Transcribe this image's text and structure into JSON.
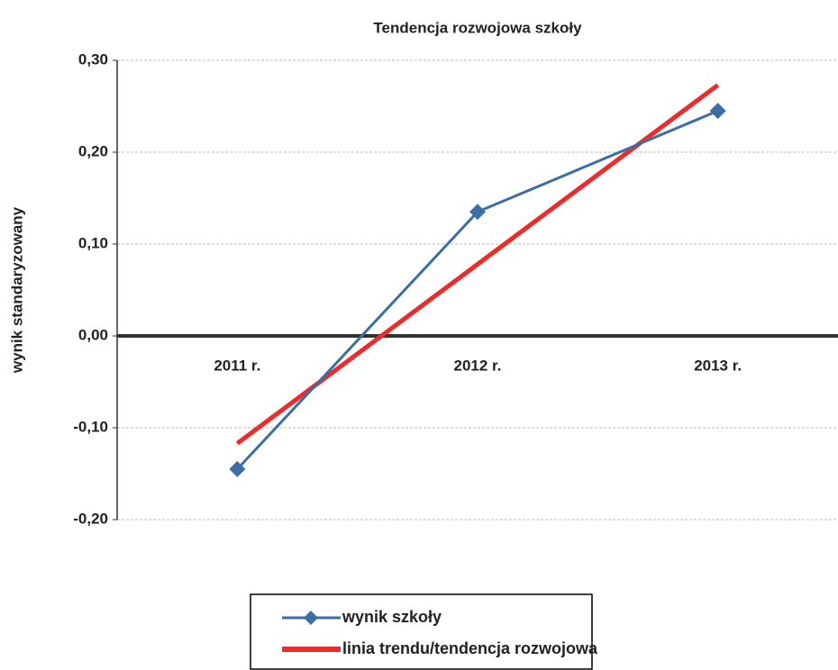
{
  "chart_data": {
    "type": "line",
    "title": "Tendencja rozwojowa szkoły",
    "y_label": "wynik standaryzowany",
    "categories": [
      "2011 r.",
      "2012 r.",
      "2013 r."
    ],
    "series": [
      {
        "name": "wynik szkoły",
        "color": "#3c6ea5",
        "marker": "diamond",
        "values": [
          -0.145,
          0.135,
          0.245
        ]
      },
      {
        "name": "linia trendu/tendencja rozwojowa",
        "color": "#ee2b2b",
        "values": [
          -0.117,
          0.078,
          0.273
        ]
      }
    ],
    "ylim": [
      -0.2,
      0.3
    ],
    "yticks": [
      {
        "value": -0.2,
        "label": "-0,20"
      },
      {
        "value": -0.1,
        "label": "-0,10"
      },
      {
        "value": 0,
        "label": "0,00"
      },
      {
        "value": 0.1,
        "label": "0,10"
      },
      {
        "value": 0.2,
        "label": "0,20"
      },
      {
        "value": 0.3,
        "label": "0,30"
      }
    ],
    "grid": true,
    "legend": "bottom"
  }
}
